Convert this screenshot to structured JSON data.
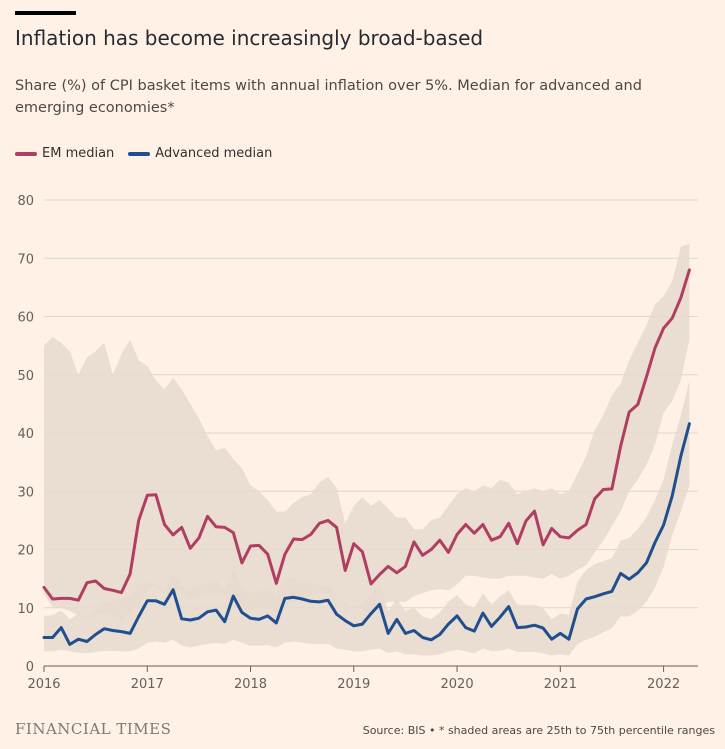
{
  "header": {
    "title": "Inflation has become increasingly broad-based",
    "subtitle": "Share (%) of CPI basket items with annual inflation over 5%. Median for advanced and emerging economies*"
  },
  "legend": {
    "em_label": "EM median",
    "adv_label": "Advanced median",
    "em_color": "#b03e63",
    "adv_color": "#1f4f8f"
  },
  "footer": {
    "brand": "FINANCIAL TIMES",
    "source": "Source: BIS • * shaded areas are 25th to 75th percentile ranges"
  },
  "chart_data": {
    "type": "line",
    "title": "Inflation has become increasingly broad-based",
    "xlabel": "",
    "ylabel": "",
    "ylim": [
      0,
      80
    ],
    "xlim": [
      "2016-01",
      "2022-04"
    ],
    "yticks": [
      0,
      10,
      20,
      30,
      40,
      50,
      60,
      70,
      80
    ],
    "xticks": [
      "2016",
      "2017",
      "2018",
      "2019",
      "2020",
      "2021",
      "2022"
    ],
    "grid": true,
    "legend_position": "top-left",
    "x": [
      "2016-01",
      "2016-02",
      "2016-03",
      "2016-04",
      "2016-05",
      "2016-06",
      "2016-07",
      "2016-08",
      "2016-09",
      "2016-10",
      "2016-11",
      "2016-12",
      "2017-01",
      "2017-02",
      "2017-03",
      "2017-04",
      "2017-05",
      "2017-06",
      "2017-07",
      "2017-08",
      "2017-09",
      "2017-10",
      "2017-11",
      "2017-12",
      "2018-01",
      "2018-02",
      "2018-03",
      "2018-04",
      "2018-05",
      "2018-06",
      "2018-07",
      "2018-08",
      "2018-09",
      "2018-10",
      "2018-11",
      "2018-12",
      "2019-01",
      "2019-02",
      "2019-03",
      "2019-04",
      "2019-05",
      "2019-06",
      "2019-07",
      "2019-08",
      "2019-09",
      "2019-10",
      "2019-11",
      "2019-12",
      "2020-01",
      "2020-02",
      "2020-03",
      "2020-04",
      "2020-05",
      "2020-06",
      "2020-07",
      "2020-08",
      "2020-09",
      "2020-10",
      "2020-11",
      "2020-12",
      "2021-01",
      "2021-02",
      "2021-03",
      "2021-04",
      "2021-05",
      "2021-06",
      "2021-07",
      "2021-08",
      "2021-09",
      "2021-10",
      "2021-11",
      "2021-12",
      "2022-01",
      "2022-02",
      "2022-03",
      "2022-04"
    ],
    "series": [
      {
        "name": "EM median",
        "color": "#b03e63",
        "values": [
          13.5,
          11.5,
          11.6,
          11.6,
          11.3,
          14.3,
          14.6,
          13.3,
          13.0,
          12.6,
          15.8,
          25.0,
          29.3,
          29.4,
          24.3,
          22.5,
          23.8,
          20.2,
          22.0,
          25.7,
          23.9,
          23.8,
          22.9,
          17.7,
          20.6,
          20.7,
          19.2,
          14.2,
          19.2,
          21.8,
          21.7,
          22.6,
          24.5,
          25.0,
          23.8,
          16.4,
          21.0,
          19.6,
          14.1,
          15.7,
          17.1,
          16.0,
          17.1,
          21.3,
          19.0,
          20.0,
          21.6,
          19.5,
          22.6,
          24.3,
          22.8,
          24.3,
          21.6,
          22.2,
          24.5,
          21.0,
          24.9,
          26.6,
          20.8,
          23.6,
          22.2,
          22.0,
          23.3,
          24.3,
          28.7,
          30.3,
          30.4,
          37.7,
          43.6,
          44.9,
          49.6,
          54.6,
          58.0,
          59.7,
          63.2,
          68.0
        ]
      },
      {
        "name": "Advanced median",
        "color": "#1f4f8f",
        "values": [
          4.9,
          4.9,
          6.6,
          3.7,
          4.6,
          4.2,
          5.4,
          6.4,
          6.1,
          5.9,
          5.6,
          8.5,
          11.2,
          11.2,
          10.6,
          13.1,
          8.1,
          7.9,
          8.2,
          9.3,
          9.6,
          7.6,
          12.0,
          9.2,
          8.2,
          8.0,
          8.6,
          7.4,
          11.6,
          11.8,
          11.5,
          11.1,
          11.0,
          11.3,
          8.9,
          7.8,
          6.9,
          7.2,
          9.0,
          10.6,
          5.6,
          8.0,
          5.6,
          6.1,
          4.9,
          4.5,
          5.4,
          7.2,
          8.6,
          6.6,
          6.0,
          9.1,
          6.8,
          8.4,
          10.2,
          6.6,
          6.7,
          7.0,
          6.5,
          4.6,
          5.6,
          4.6,
          9.8,
          11.5,
          11.9,
          12.4,
          12.8,
          15.9,
          14.9,
          16.0,
          17.7,
          21.2,
          24.2,
          29.2,
          36.0,
          41.6
        ]
      }
    ],
    "bands": [
      {
        "series": "EM median",
        "label": "25th to 75th percentile",
        "low": [
          12.3,
          10.2,
          9.9,
          9.5,
          8.6,
          8.0,
          8.6,
          9.0,
          8.5,
          8.0,
          9.5,
          10.5,
          13.3,
          13.5,
          12.5,
          13.0,
          13.0,
          11.5,
          11.5,
          12.2,
          12.2,
          11.8,
          10.0,
          9.5,
          9.5,
          10.0,
          10.0,
          9.0,
          10.5,
          11.0,
          11.5,
          12.0,
          12.5,
          12.5,
          12.0,
          9.0,
          10.0,
          10.0,
          8.5,
          10.5,
          11.0,
          11.0,
          11.0,
          12.0,
          12.5,
          13.0,
          13.2,
          13.0,
          14.0,
          15.5,
          15.5,
          15.2,
          15.0,
          15.0,
          15.5,
          15.5,
          15.5,
          15.2,
          15.0,
          15.8,
          15.0,
          15.5,
          16.5,
          17.3,
          19.5,
          21.5,
          24.0,
          26.5,
          30.0,
          32.0,
          34.5,
          38.0,
          43.5,
          45.5,
          49.0,
          56.0
        ],
        "high": [
          55.0,
          56.5,
          55.5,
          54.0,
          50.0,
          53.0,
          54.0,
          55.5,
          50.0,
          53.5,
          56.0,
          52.5,
          51.5,
          49.0,
          47.5,
          49.5,
          47.5,
          45.0,
          42.5,
          39.5,
          37.0,
          37.5,
          35.5,
          34.0,
          31.0,
          30.0,
          28.5,
          26.5,
          26.5,
          28.0,
          29.0,
          29.5,
          31.5,
          32.5,
          30.5,
          24.5,
          27.5,
          29.0,
          27.5,
          28.5,
          27.0,
          25.5,
          25.5,
          23.5,
          23.5,
          25.0,
          25.5,
          27.5,
          29.5,
          30.5,
          30.0,
          31.0,
          30.5,
          32.0,
          31.5,
          29.5,
          30.0,
          30.5,
          30.0,
          30.5,
          29.5,
          30.0,
          33.0,
          36.0,
          40.5,
          43.0,
          46.5,
          48.5,
          52.5,
          55.5,
          58.5,
          62.0,
          63.5,
          66.0,
          72.0,
          72.5
        ]
      },
      {
        "series": "Advanced median",
        "label": "25th to 75th percentile",
        "low": [
          2.5,
          2.5,
          2.8,
          2.5,
          2.3,
          2.2,
          2.4,
          2.6,
          2.6,
          2.5,
          2.5,
          3.0,
          4.0,
          4.2,
          4.0,
          4.5,
          3.5,
          3.2,
          3.5,
          3.8,
          4.0,
          3.8,
          4.5,
          4.0,
          3.5,
          3.5,
          3.6,
          3.2,
          4.0,
          4.2,
          4.0,
          3.8,
          3.8,
          3.8,
          3.0,
          2.8,
          2.5,
          2.5,
          2.8,
          3.0,
          2.2,
          2.5,
          2.0,
          2.0,
          1.8,
          1.8,
          2.0,
          2.5,
          2.8,
          2.5,
          2.2,
          3.0,
          2.5,
          2.6,
          3.0,
          2.4,
          2.4,
          2.4,
          2.2,
          1.8,
          2.0,
          1.8,
          3.8,
          4.5,
          5.0,
          5.8,
          6.5,
          8.5,
          8.5,
          9.5,
          11.0,
          13.5,
          17.0,
          22.5,
          26.5,
          31.0
        ],
        "high": [
          8.5,
          8.8,
          9.5,
          8.0,
          9.0,
          8.5,
          9.5,
          11.0,
          11.0,
          11.5,
          12.0,
          14.0,
          14.2,
          14.2,
          13.0,
          16.0,
          13.8,
          13.2,
          13.8,
          14.2,
          14.8,
          13.0,
          16.5,
          13.6,
          12.5,
          12.8,
          13.2,
          12.0,
          15.2,
          15.2,
          14.6,
          14.2,
          13.8,
          13.8,
          12.0,
          11.0,
          10.0,
          10.5,
          12.5,
          14.0,
          9.5,
          11.5,
          9.5,
          10.0,
          8.5,
          8.0,
          9.2,
          11.0,
          12.2,
          10.5,
          10.0,
          12.5,
          10.5,
          12.0,
          13.0,
          10.5,
          10.5,
          10.5,
          10.0,
          8.0,
          9.0,
          8.8,
          14.5,
          16.5,
          17.5,
          18.0,
          18.5,
          21.5,
          22.0,
          23.5,
          25.5,
          28.5,
          32.0,
          38.0,
          43.0,
          49.0
        ]
      }
    ]
  }
}
